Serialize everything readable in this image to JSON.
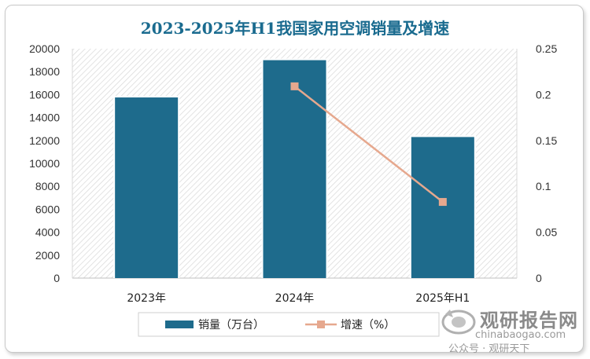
{
  "chart_data": {
    "type": "bar",
    "title": "2023-2025年H1我国家用空调销量及增速",
    "categories": [
      "2023年",
      "2024年",
      "2025年H1"
    ],
    "series": [
      {
        "name": "销量（万台）",
        "type": "bar",
        "axis": "left",
        "color": "#1e6b8c",
        "values": [
          15750,
          19000,
          12300
        ]
      },
      {
        "name": "增速（%）",
        "type": "line",
        "axis": "right",
        "color": "#e6a88e",
        "values": [
          null,
          0.209,
          0.083
        ]
      }
    ],
    "y_left": {
      "min": 0,
      "max": 20000,
      "ticks": [
        "0",
        "2000",
        "4000",
        "6000",
        "8000",
        "10000",
        "12000",
        "14000",
        "16000",
        "18000",
        "20000"
      ]
    },
    "y_right": {
      "min": 0,
      "max": 0.25,
      "ticks": [
        "0",
        "0.05",
        "0.1",
        "0.15",
        "0.2",
        "0.25"
      ]
    },
    "legend_position": "bottom",
    "grid": false
  },
  "watermark": {
    "brand": "观研报告网",
    "url": "chinabaogao.com",
    "publisher": "公众号 · 观研天下"
  }
}
